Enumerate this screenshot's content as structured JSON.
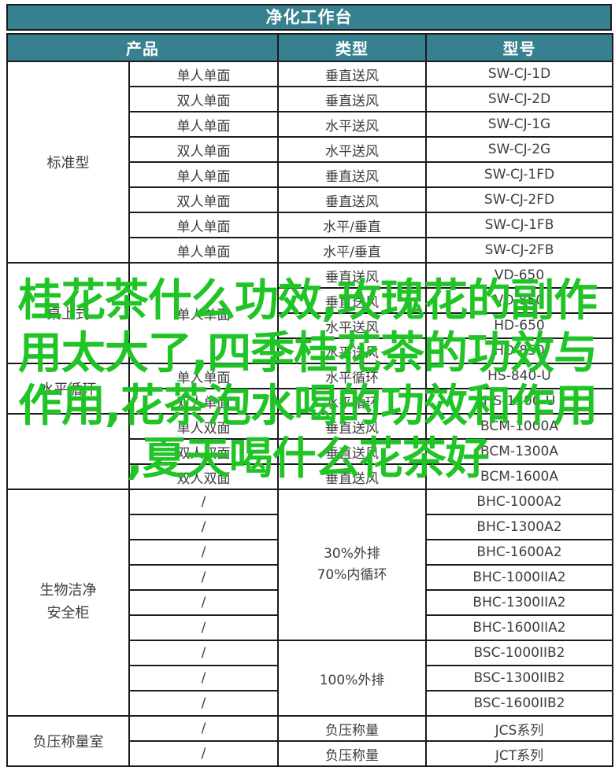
{
  "title": "净化工作台",
  "header": {
    "product": "产品",
    "type": "类型",
    "model": "型号"
  },
  "sections": [
    {
      "label": "标准型",
      "rows": [
        {
          "product": "单人单面",
          "type": "垂直送风",
          "model": "SW-CJ-1D"
        },
        {
          "product": "双人单面",
          "type": "垂直送风",
          "model": "SW-CJ-2D"
        },
        {
          "product": "单人单面",
          "type": "水平送风",
          "model": "SW-CJ-1G"
        },
        {
          "product": "双人单面",
          "type": "水平送风",
          "model": "SW-CJ-2G"
        },
        {
          "product": "单人单面",
          "type": "垂直送风",
          "model": "SW-CJ-1FD"
        },
        {
          "product": "双人单面",
          "type": "垂直送风",
          "model": "SW-CJ-2FD"
        },
        {
          "product": "单人单面",
          "type": "水平/垂直",
          "model": "SW-CJ-1FB"
        },
        {
          "product": "单人单面",
          "type": "水平/垂直",
          "model": "SW-CJ-2FB"
        }
      ]
    },
    {
      "label": "桌上式",
      "merged_product": "单人单面",
      "rows": [
        {
          "type": "垂直送风",
          "model": "VD-650"
        },
        {
          "type": "垂直送风",
          "model": "VD-850"
        },
        {
          "type": "水平送风",
          "model": "HD-650"
        },
        {
          "type": "水平送风",
          "model": "HD-850"
        }
      ]
    },
    {
      "label": "水平循环",
      "rows": [
        {
          "product": "单人单面",
          "type": "水平循环",
          "model": "HS-840-U"
        },
        {
          "product": "双人单面",
          "type": "水平循环",
          "model": "HS-1300-U"
        }
      ]
    },
    {
      "label": "",
      "rows": [
        {
          "product": "单人双面",
          "type": "垂直送风",
          "model": "BCM-1000A"
        },
        {
          "product": "双人双面",
          "type": "垂直送风",
          "model": "BCM-1300A"
        },
        {
          "product": "双人双面",
          "type": "垂直送风",
          "model": "BCM-1600A"
        }
      ]
    },
    {
      "label_lines": [
        "生物洁净",
        "安全柜"
      ],
      "groups": [
        {
          "type_lines": [
            "30%外排",
            "70%内循环"
          ],
          "rows": [
            {
              "product": "/",
              "model": "BHC-1000A2"
            },
            {
              "product": "/",
              "model": "BHC-1300A2"
            },
            {
              "product": "/",
              "model": "BHC-1600A2"
            },
            {
              "product": "/",
              "model": "BHC-1000IIA2"
            },
            {
              "product": "/",
              "model": "BHC-1300IIA2"
            },
            {
              "product": "/",
              "model": "BHC-1600IIA2"
            }
          ]
        },
        {
          "type_lines": [
            "100%外排"
          ],
          "rows": [
            {
              "product": "/",
              "model": "BSC-1000IIB2"
            },
            {
              "product": "/",
              "model": "BSC-1300IIB2"
            },
            {
              "product": "/",
              "model": "BSC-1600IIB2"
            }
          ]
        }
      ]
    },
    {
      "label": "负压称量室",
      "rows": [
        {
          "product": "/",
          "type": "负压称量",
          "model": "JCS系列"
        },
        {
          "product": "/",
          "type": "负压称量",
          "model": "JCT系列"
        }
      ]
    }
  ],
  "watermark": {
    "lines": [
      "桂花茶什么功效,玫瑰花的副作",
      "用太大了,四季桂花茶的功效与",
      "作用,花茶泡水喝的功效和作用",
      ",夏天喝什么花茶好"
    ],
    "color": "#21c427"
  },
  "colors": {
    "header_bg": "#36808f",
    "header_text": "#ffffff",
    "border": "#1b1b1b",
    "body_text": "#3d3d3d"
  }
}
